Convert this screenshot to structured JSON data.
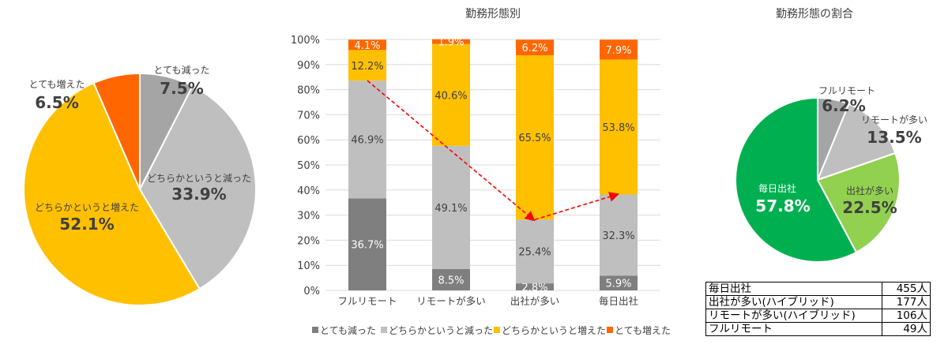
{
  "chart_data": [
    {
      "type": "pie",
      "title": "",
      "slices": [
        {
          "label": "とても減った",
          "value": 7.5,
          "value_label": "7.5%",
          "color": "#a5a5a5"
        },
        {
          "label": "どちらかというと減った",
          "value": 33.9,
          "value_label": "33.9%",
          "color": "#bfbfbf"
        },
        {
          "label": "どちらかというと増えた",
          "value": 52.1,
          "value_label": "52.1%",
          "color": "#ffc000"
        },
        {
          "label": "とても増えた",
          "value": 6.5,
          "value_label": "6.5%",
          "color": "#ff6600"
        }
      ]
    },
    {
      "type": "bar",
      "stacked": true,
      "title": "勤務形態別",
      "categories": [
        "フルリモート",
        "リモートが多い",
        "出社が多い",
        "毎日出社"
      ],
      "ylim": [
        0,
        100
      ],
      "yticks": [
        "0%",
        "10%",
        "20%",
        "30%",
        "40%",
        "50%",
        "60%",
        "70%",
        "80%",
        "90%",
        "100%"
      ],
      "series": [
        {
          "name": "とても減った",
          "color": "#7f7f7f",
          "values": [
            36.7,
            8.5,
            2.8,
            5.9
          ],
          "labels": [
            "36.7%",
            "8.5%",
            "2.8%",
            "5.9%"
          ]
        },
        {
          "name": "どちらかというと減った",
          "color": "#bfbfbf",
          "values": [
            46.9,
            49.1,
            25.4,
            32.3
          ],
          "labels": [
            "46.9%",
            "49.1%",
            "25.4%",
            "32.3%"
          ]
        },
        {
          "name": "どちらかというと増えた",
          "color": "#ffc000",
          "values": [
            12.2,
            40.6,
            65.5,
            53.8
          ],
          "labels": [
            "12.2%",
            "40.6%",
            "65.5%",
            "53.8%"
          ]
        },
        {
          "name": "とても増えた",
          "color": "#ff6600",
          "values": [
            4.1,
            1.9,
            6.2,
            7.9
          ],
          "labels": [
            "4.1%",
            "1.9%",
            "6.2%",
            "7.9%"
          ]
        }
      ],
      "legend_position": "bottom"
    },
    {
      "type": "pie",
      "title": "勤務形態の割合",
      "slices": [
        {
          "label": "フルリモート",
          "value": 6.2,
          "value_label": "6.2%",
          "color": "#a5a5a5"
        },
        {
          "label": "リモートが多い",
          "value": 13.5,
          "value_label": "13.5%",
          "color": "#bfbfbf"
        },
        {
          "label": "出社が多い",
          "value": 22.5,
          "value_label": "22.5%",
          "color": "#92d050"
        },
        {
          "label": "毎日出社",
          "value": 57.8,
          "value_label": "57.8%",
          "color": "#00b050"
        }
      ]
    }
  ],
  "count_table": [
    {
      "label": "毎日出社",
      "count": "455人"
    },
    {
      "label": "出社が多い(ハイブリッド)",
      "count": "177人"
    },
    {
      "label": "リモートが多い(ハイブリッド)",
      "count": "106人"
    },
    {
      "label": "フルリモート",
      "count": "49人"
    }
  ]
}
